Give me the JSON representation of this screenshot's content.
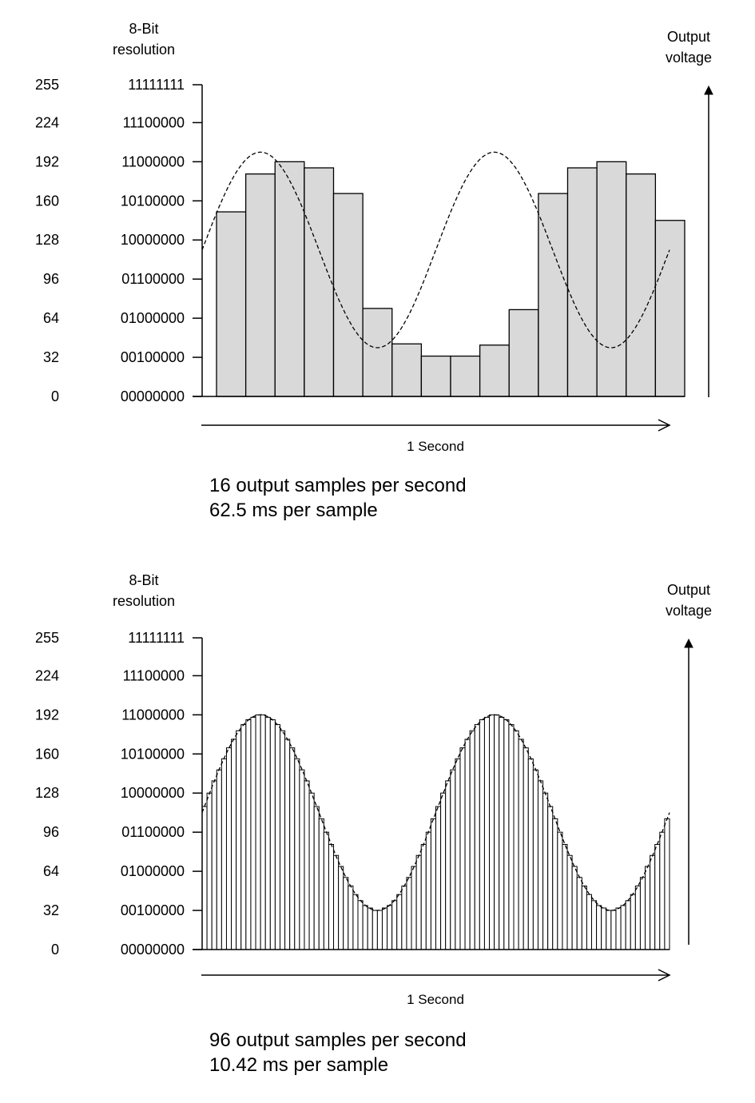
{
  "chart_data": [
    {
      "type": "bar",
      "resolution_label": [
        "8-Bit",
        "resolution"
      ],
      "output_label": [
        "Output",
        "voltage"
      ],
      "xlabel": "1 Second",
      "y_ticks": [
        {
          "decimal": "255",
          "binary": "11111111",
          "value": 255
        },
        {
          "decimal": "224",
          "binary": "11100000",
          "value": 224
        },
        {
          "decimal": "192",
          "binary": "11000000",
          "value": 192
        },
        {
          "decimal": "160",
          "binary": "10100000",
          "value": 160
        },
        {
          "decimal": "128",
          "binary": "10000000",
          "value": 128
        },
        {
          "decimal": "96",
          "binary": "01100000",
          "value": 96
        },
        {
          "decimal": "64",
          "binary": "01000000",
          "value": 64
        },
        {
          "decimal": "32",
          "binary": "00100000",
          "value": 32
        },
        {
          "decimal": "0",
          "binary": "00000000",
          "value": 0
        }
      ],
      "ylim": [
        0,
        255
      ],
      "samples_per_second": 16,
      "values": [
        151,
        182,
        192,
        187,
        166,
        72,
        43,
        33,
        33,
        42,
        71,
        166,
        187,
        192,
        182,
        144
      ],
      "captions": [
        "16 output samples per second",
        "62.5 ms per sample"
      ],
      "colors": {
        "bar_fill": "#d9d9d9",
        "bar_stroke": "#000000"
      }
    },
    {
      "type": "bar",
      "resolution_label": [
        "8-Bit",
        "resolution"
      ],
      "output_label": [
        "Output",
        "voltage"
      ],
      "xlabel": "1 Second",
      "y_ticks": [
        {
          "decimal": "255",
          "binary": "11111111",
          "value": 255
        },
        {
          "decimal": "224",
          "binary": "11100000",
          "value": 224
        },
        {
          "decimal": "192",
          "binary": "11000000",
          "value": 192
        },
        {
          "decimal": "160",
          "binary": "10100000",
          "value": 160
        },
        {
          "decimal": "128",
          "binary": "10000000",
          "value": 128
        },
        {
          "decimal": "96",
          "binary": "01100000",
          "value": 96
        },
        {
          "decimal": "64",
          "binary": "01000000",
          "value": 64
        },
        {
          "decimal": "32",
          "binary": "00100000",
          "value": 32
        },
        {
          "decimal": "0",
          "binary": "00000000",
          "value": 0
        }
      ],
      "ylim": [
        0,
        255
      ],
      "samples_per_second": 96,
      "waveform": {
        "offset": 112,
        "amplitude": 80,
        "cycles": 2
      },
      "captions": [
        "96 output samples per second",
        "10.42 ms per sample"
      ],
      "colors": {
        "bar_fill": "#ffffff",
        "bar_stroke": "#000000"
      }
    }
  ]
}
